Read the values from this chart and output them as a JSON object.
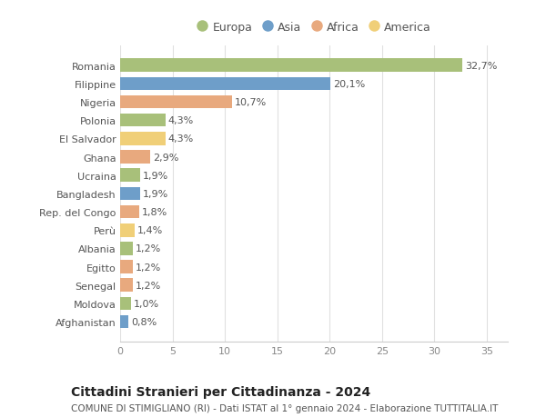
{
  "countries": [
    "Romania",
    "Filippine",
    "Nigeria",
    "Polonia",
    "El Salvador",
    "Ghana",
    "Ucraina",
    "Bangladesh",
    "Rep. del Congo",
    "Perù",
    "Albania",
    "Egitto",
    "Senegal",
    "Moldova",
    "Afghanistan"
  ],
  "values": [
    32.7,
    20.1,
    10.7,
    4.3,
    4.3,
    2.9,
    1.9,
    1.9,
    1.8,
    1.4,
    1.2,
    1.2,
    1.2,
    1.0,
    0.8
  ],
  "labels": [
    "32,7%",
    "20,1%",
    "10,7%",
    "4,3%",
    "4,3%",
    "2,9%",
    "1,9%",
    "1,9%",
    "1,8%",
    "1,4%",
    "1,2%",
    "1,2%",
    "1,2%",
    "1,0%",
    "0,8%"
  ],
  "continents": [
    "Europa",
    "Asia",
    "Africa",
    "Europa",
    "America",
    "Africa",
    "Europa",
    "Asia",
    "Africa",
    "America",
    "Europa",
    "Africa",
    "Africa",
    "Europa",
    "Asia"
  ],
  "continent_colors": {
    "Europa": "#a8c07a",
    "Asia": "#6e9ec9",
    "Africa": "#e8a97e",
    "America": "#f0cf78"
  },
  "legend_order": [
    "Europa",
    "Asia",
    "Africa",
    "America"
  ],
  "title": "Cittadini Stranieri per Cittadinanza - 2024",
  "subtitle": "COMUNE DI STIMIGLIANO (RI) - Dati ISTAT al 1° gennaio 2024 - Elaborazione TUTTITALIA.IT",
  "xlim": [
    0,
    37
  ],
  "xticks": [
    0,
    5,
    10,
    15,
    20,
    25,
    30,
    35
  ],
  "background_color": "#ffffff",
  "grid_color": "#e0e0e0",
  "bar_height": 0.72,
  "title_fontsize": 10,
  "subtitle_fontsize": 7.5,
  "label_fontsize": 8,
  "tick_fontsize": 8,
  "legend_fontsize": 9
}
